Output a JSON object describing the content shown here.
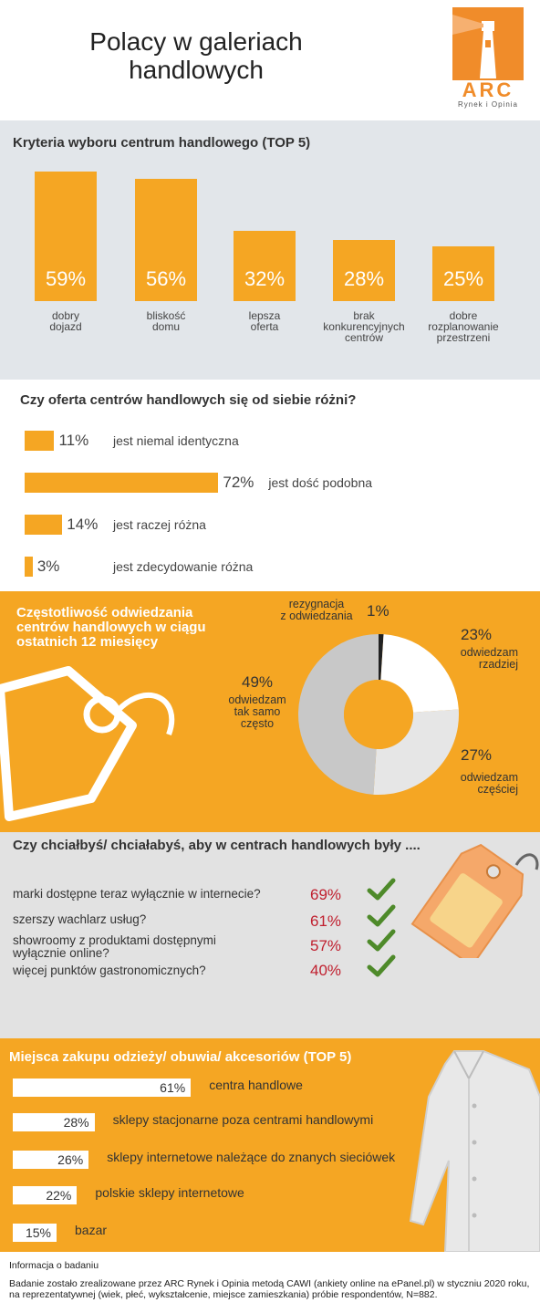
{
  "header": {
    "title_line1": "Polacy w galeriach",
    "title_line2": "handlowych",
    "logo_text": "ARC",
    "logo_sub": "Rynek i Opinia"
  },
  "colors": {
    "orange": "#f5a623",
    "logo_orange": "#f08c2a",
    "grey_panel": "#e2e6ea",
    "red_value": "#c0202f",
    "check_green": "#4e8a2a",
    "donut_grey": "#c8c8c8"
  },
  "chart_data": [
    {
      "type": "bar",
      "title": "Kryteria wyboru centrum handlowego (TOP 5)",
      "categories": [
        [
          "dobry",
          "dojazd"
        ],
        [
          "bliskość",
          "domu"
        ],
        [
          "lepsza",
          "oferta"
        ],
        [
          "brak",
          "konkurencyjnych",
          "centrów"
        ],
        [
          "dobre",
          "rozplanowanie",
          "przestrzeni"
        ]
      ],
      "values": [
        59,
        56,
        32,
        28,
        25
      ],
      "value_labels": [
        "59%",
        "56%",
        "32%",
        "28%",
        "25%"
      ],
      "unit": "%"
    },
    {
      "type": "bar",
      "orientation": "horizontal",
      "title": "Czy oferta centrów handlowych się od siebie różni?",
      "categories": [
        "jest niemal identyczna",
        "jest dość podobna",
        "jest raczej różna",
        "jest zdecydowanie różna"
      ],
      "values": [
        11,
        72,
        14,
        3
      ],
      "value_labels": [
        "11%",
        "72%",
        "14%",
        "3%"
      ],
      "unit": "%"
    },
    {
      "type": "pie",
      "style": "donut",
      "title": [
        "Częstotliwość odwiedzania",
        "centrów handlowych w ciągu",
        "ostatnich 12 miesięcy"
      ],
      "slices": [
        {
          "label": [
            "rezygnacja",
            "z odwiedzania"
          ],
          "value": 1,
          "value_label": "1%",
          "color": "#222222"
        },
        {
          "label": [
            "odwiedzam",
            "rzadziej"
          ],
          "value": 23,
          "value_label": "23%",
          "color": "#ffffff"
        },
        {
          "label": [
            "odwiedzam",
            "częściej"
          ],
          "value": 27,
          "value_label": "27%",
          "color": "#e6e6e6"
        },
        {
          "label": [
            "odwiedzam",
            "tak samo",
            "często"
          ],
          "value": 49,
          "value_label": "49%",
          "color": "#c8c8c8"
        }
      ]
    },
    {
      "type": "table",
      "title": "Czy chciałbyś/ chciałabyś, aby w centrach handlowych były ....",
      "rows": [
        {
          "label": [
            "marki dostępne teraz wyłącznie w internecie?"
          ],
          "value": 69,
          "value_label": "69%"
        },
        {
          "label": [
            "szerszy wachlarz usług?"
          ],
          "value": 61,
          "value_label": "61%"
        },
        {
          "label": [
            "showroomy z produktami dostępnymi",
            "wyłącznie online?"
          ],
          "value": 57,
          "value_label": "57%"
        },
        {
          "label": [
            "więcej punktów gastronomicznych?"
          ],
          "value": 40,
          "value_label": "40%"
        }
      ]
    },
    {
      "type": "bar",
      "orientation": "horizontal",
      "title": "Miejsca zakupu odzieży/ obuwia/ akcesoriów (TOP 5)",
      "categories": [
        "centra handlowe",
        "sklepy stacjonarne poza centrami handlowymi",
        "sklepy internetowe należące do znanych sieciówek",
        "polskie sklepy internetowe",
        "bazar"
      ],
      "values": [
        61,
        28,
        26,
        22,
        15
      ],
      "value_labels": [
        "61%",
        "28%",
        "26%",
        "22%",
        "15%"
      ],
      "unit": "%"
    }
  ],
  "footer": {
    "info_title": "Informacja o badaniu",
    "info_text": "Badanie zostało zrealizowane przez ARC Rynek i Opinia metodą CAWI (ankiety online na ePanel.pl) w styczniu 2020 roku, na reprezentatywnej (wiek, płeć, wykształcenie, miejsce zamieszkania) próbie respondentów, N=882."
  }
}
